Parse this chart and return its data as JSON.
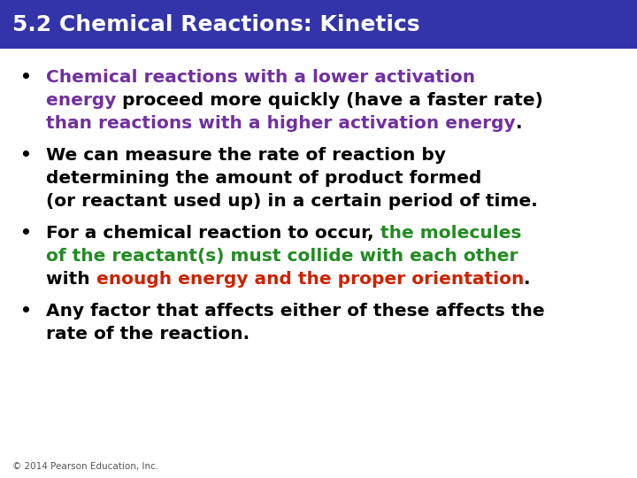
{
  "title": "5.2 Chemical Reactions: Kinetics",
  "title_bg_color": "#3333AA",
  "title_text_color": "#FFFFFF",
  "bg_color": "#FFFFFF",
  "footer": "© 2014 Pearson Education, Inc.",
  "footer_color": "#555555",
  "bullet_lines": [
    [
      [
        {
          "text": "Chemical reactions with a lower activation",
          "color": "#7030A0",
          "bold": true
        }
      ],
      [
        {
          "text": "energy ",
          "color": "#7030A0",
          "bold": true
        },
        {
          "text": "proceed more quickly (have a faster rate)",
          "color": "#000000",
          "bold": true
        }
      ],
      [
        {
          "text": "than reactions with a higher activation energy",
          "color": "#7030A0",
          "bold": true
        },
        {
          "text": ".",
          "color": "#000000",
          "bold": true
        }
      ]
    ],
    [
      [
        {
          "text": "We can measure the rate of reaction by",
          "color": "#000000",
          "bold": true
        }
      ],
      [
        {
          "text": "determining the amount of product formed",
          "color": "#000000",
          "bold": true
        }
      ],
      [
        {
          "text": "(or reactant used up) in a certain period of time.",
          "color": "#000000",
          "bold": true
        }
      ]
    ],
    [
      [
        {
          "text": "For a chemical reaction to occur, ",
          "color": "#000000",
          "bold": true
        },
        {
          "text": "the molecules",
          "color": "#228B22",
          "bold": true
        }
      ],
      [
        {
          "text": "of the reactant(s) must collide with each other",
          "color": "#228B22",
          "bold": true
        }
      ],
      [
        {
          "text": "with ",
          "color": "#000000",
          "bold": true
        },
        {
          "text": "enough energy and the proper orientation",
          "color": "#CC2200",
          "bold": true
        },
        {
          "text": ".",
          "color": "#000000",
          "bold": true
        }
      ]
    ],
    [
      [
        {
          "text": "Any factor that affects either of these affects the",
          "color": "#000000",
          "bold": true
        }
      ],
      [
        {
          "text": "rate of the reaction.",
          "color": "#000000",
          "bold": true
        }
      ]
    ]
  ]
}
